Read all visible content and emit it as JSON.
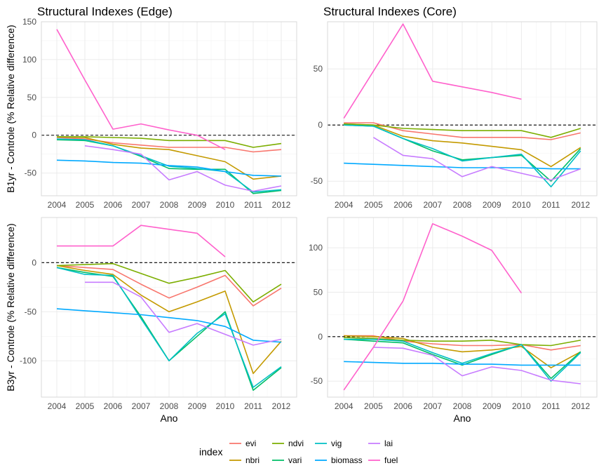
{
  "chart_data": {
    "type": "line",
    "x": [
      2004,
      2005,
      2006,
      2007,
      2008,
      2009,
      2010,
      2011,
      2012
    ],
    "x_tick_labels": [
      "2004",
      "2005",
      "2006",
      "2007",
      "2008",
      "2009",
      "2010",
      "2011",
      "2012"
    ],
    "xlabel": "Ano",
    "ylabel_row1": "B1yr - Controle (% Relative difference)",
    "ylabel_row2": "B3yr - Controle (% Relative difference)",
    "grid": true,
    "reference_line_y": 0,
    "legend": {
      "title": "index",
      "placement": "bottom",
      "entries": [
        {
          "name": "evi",
          "color": "#F8766D"
        },
        {
          "name": "nbri",
          "color": "#C49A00"
        },
        {
          "name": "ndvi",
          "color": "#7CAE00"
        },
        {
          "name": "vari",
          "color": "#00BE67"
        },
        {
          "name": "vig",
          "color": "#00BFC4"
        },
        {
          "name": "biomass",
          "color": "#00A9FF"
        },
        {
          "name": "lai",
          "color": "#C77CFF"
        },
        {
          "name": "fuel",
          "color": "#FF61CC"
        }
      ]
    },
    "panels": [
      {
        "title": "Structural Indexes (Edge)",
        "ylim": [
          -80,
          150
        ],
        "yticks": [
          -50,
          0,
          50,
          100,
          150
        ],
        "series": [
          {
            "name": "evi",
            "values": [
              -3,
              -5,
              -10,
              -13,
              -16,
              -16,
              -16,
              -22,
              -19
            ]
          },
          {
            "name": "nbri",
            "values": [
              -2,
              -3,
              -12,
              -17,
              -19,
              -27,
              -35,
              -58,
              -54
            ]
          },
          {
            "name": "ndvi",
            "values": [
              -2,
              -2,
              -3,
              -4,
              -7,
              -7,
              -7,
              -16,
              -11
            ]
          },
          {
            "name": "vari",
            "values": [
              -6,
              -7,
              -14,
              -28,
              -44,
              -45,
              -45,
              -77,
              -73
            ]
          },
          {
            "name": "vig",
            "values": [
              -5,
              -6,
              -14,
              -27,
              -41,
              -44,
              -48,
              -75,
              -72
            ]
          },
          {
            "name": "biomass",
            "values": [
              -33,
              -34,
              -36,
              -37,
              -40,
              -42,
              -48,
              -53,
              -54
            ]
          },
          {
            "name": "lai",
            "values": [
              null,
              -14,
              -19,
              -25,
              -59,
              -48,
              -66,
              -74,
              -67
            ]
          },
          {
            "name": "fuel",
            "values": [
              140,
              73,
              8,
              15,
              7,
              0,
              -19,
              null,
              null
            ]
          }
        ]
      },
      {
        "title": "Structural Indexes (Core)",
        "ylim": [
          -63,
          92
        ],
        "yticks": [
          -50,
          0,
          50
        ],
        "series": [
          {
            "name": "evi",
            "values": [
              2,
              2,
              -5,
              -8,
              -11,
              -11,
              -11,
              -13,
              -7
            ]
          },
          {
            "name": "nbri",
            "values": [
              1,
              0,
              -10,
              -14,
              -16,
              -19,
              -22,
              -37,
              -20
            ]
          },
          {
            "name": "ndvi",
            "values": [
              1,
              0,
              -3,
              -4,
              -5,
              -5,
              -5,
              -11,
              -3
            ]
          },
          {
            "name": "vari",
            "values": [
              0,
              -1,
              -12,
              -23,
              -31,
              -29,
              -27,
              -50,
              -21
            ]
          },
          {
            "name": "vig",
            "values": [
              0,
              -1,
              -12,
              -21,
              -32,
              -29,
              -26,
              -55,
              -23
            ]
          },
          {
            "name": "biomass",
            "values": [
              -34,
              -35,
              -36,
              -37,
              -38,
              -38,
              -38,
              -39,
              -39
            ]
          },
          {
            "name": "lai",
            "values": [
              null,
              -11,
              -27,
              -30,
              -46,
              -37,
              -43,
              -49,
              -39
            ]
          },
          {
            "name": "fuel",
            "values": [
              6,
              48,
              90,
              39,
              34,
              29,
              23,
              null,
              null
            ]
          }
        ]
      },
      {
        "title": "",
        "ylim": [
          -137,
          46
        ],
        "yticks": [
          -100,
          -50,
          0
        ],
        "series": [
          {
            "name": "evi",
            "values": [
              -3,
              -5,
              -7,
              -22,
              -36,
              -25,
              -13,
              -44,
              -26
            ]
          },
          {
            "name": "nbri",
            "values": [
              -3,
              -8,
              -12,
              -33,
              -50,
              -40,
              -29,
              -113,
              -80
            ]
          },
          {
            "name": "ndvi",
            "values": [
              -3,
              -2,
              -1,
              -11,
              -21,
              -15,
              -8,
              -40,
              -22
            ]
          },
          {
            "name": "vari",
            "values": [
              -5,
              -10,
              -14,
              -55,
              -100,
              -75,
              -50,
              -130,
              -107
            ]
          },
          {
            "name": "vig",
            "values": [
              -5,
              -12,
              -13,
              -57,
              -100,
              -72,
              -52,
              -127,
              -106
            ]
          },
          {
            "name": "biomass",
            "values": [
              -47,
              -49,
              -51,
              -53,
              -56,
              -59,
              -65,
              -79,
              -81
            ]
          },
          {
            "name": "lai",
            "values": [
              null,
              -20,
              -20,
              -35,
              -71,
              -62,
              -73,
              -84,
              -78
            ]
          },
          {
            "name": "fuel",
            "values": [
              17,
              17,
              17,
              38,
              34,
              30,
              6,
              null,
              null
            ]
          }
        ]
      },
      {
        "title": "",
        "ylim": [
          -68,
          134
        ],
        "yticks": [
          -50,
          0,
          50,
          100
        ],
        "series": [
          {
            "name": "evi",
            "values": [
              1,
              1,
              -5,
              -8,
              -10,
              -10,
              -9,
              -15,
              -10
            ]
          },
          {
            "name": "nbri",
            "values": [
              1,
              0,
              -2,
              -12,
              -17,
              -15,
              -11,
              -35,
              -17
            ]
          },
          {
            "name": "ndvi",
            "values": [
              -1,
              -2,
              -4,
              -5,
              -5,
              -4,
              -9,
              -10,
              -4
            ]
          },
          {
            "name": "vari",
            "values": [
              -3,
              -5,
              -7,
              -20,
              -32,
              -20,
              -9,
              -47,
              -17
            ]
          },
          {
            "name": "vig",
            "values": [
              -3,
              -3,
              -5,
              -18,
              -30,
              -19,
              -9,
              -50,
              -18
            ]
          },
          {
            "name": "biomass",
            "values": [
              -28,
              -29,
              -30,
              -30,
              -31,
              -31,
              -32,
              -32,
              -32
            ]
          },
          {
            "name": "lai",
            "values": [
              null,
              -12,
              -13,
              -21,
              -44,
              -34,
              -38,
              -49,
              -53
            ]
          },
          {
            "name": "fuel",
            "values": [
              -60,
              -12,
              40,
              127,
              113,
              97,
              49,
              null,
              null
            ]
          }
        ]
      }
    ]
  }
}
